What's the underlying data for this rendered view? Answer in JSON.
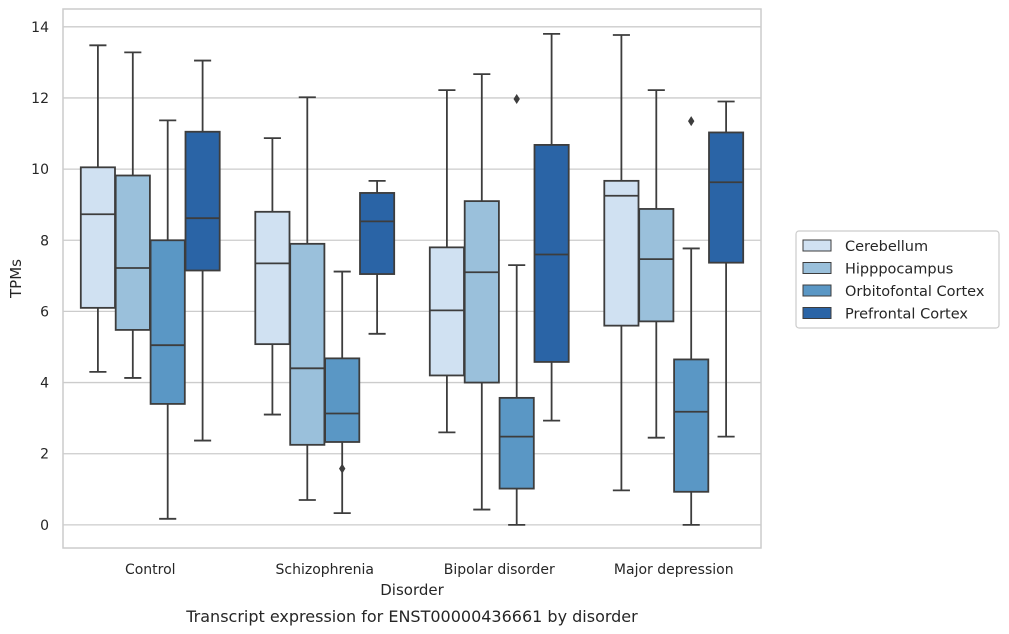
{
  "chart_data": {
    "type": "boxplot",
    "title": "",
    "caption": "Transcript expression for ENST00000436661 by disorder",
    "xlabel": "Disorder",
    "ylabel": "TPMs",
    "ylim": [
      -0.65,
      14.5
    ],
    "yticks": [
      0,
      2,
      4,
      6,
      8,
      10,
      12,
      14
    ],
    "grid": "horizontal",
    "legend_placement": "center-right outside",
    "categories": [
      "Control",
      "Schizophrenia",
      "Bipolar disorder",
      "Major depression"
    ],
    "series": [
      {
        "name": "Cerebellum",
        "color": "#d0e1f2",
        "boxes": [
          {
            "whislo": 4.3,
            "q1": 6.1,
            "med": 8.73,
            "q3": 10.05,
            "whishi": 13.48,
            "fliers": []
          },
          {
            "whislo": 3.1,
            "q1": 5.08,
            "med": 7.35,
            "q3": 8.8,
            "whishi": 10.87,
            "fliers": []
          },
          {
            "whislo": 2.6,
            "q1": 4.2,
            "med": 6.03,
            "q3": 7.8,
            "whishi": 12.22,
            "fliers": []
          },
          {
            "whislo": 0.97,
            "q1": 5.6,
            "med": 9.25,
            "q3": 9.67,
            "whishi": 13.77,
            "fliers": []
          }
        ]
      },
      {
        "name": "Hipppocampus",
        "color": "#9ac0db",
        "boxes": [
          {
            "whislo": 4.13,
            "q1": 5.48,
            "med": 7.22,
            "q3": 9.82,
            "whishi": 13.28,
            "fliers": []
          },
          {
            "whislo": 0.7,
            "q1": 2.25,
            "med": 4.4,
            "q3": 7.9,
            "whishi": 12.02,
            "fliers": []
          },
          {
            "whislo": 0.43,
            "q1": 4.0,
            "med": 7.1,
            "q3": 9.1,
            "whishi": 12.67,
            "fliers": []
          },
          {
            "whislo": 2.45,
            "q1": 5.72,
            "med": 7.47,
            "q3": 8.88,
            "whishi": 12.22,
            "fliers": []
          }
        ]
      },
      {
        "name": "Orbitofontal Cortex",
        "color": "#5a97c5",
        "boxes": [
          {
            "whislo": 0.17,
            "q1": 3.4,
            "med": 5.05,
            "q3": 8.0,
            "whishi": 11.37,
            "fliers": []
          },
          {
            "whislo": 0.33,
            "q1": 2.33,
            "med": 3.13,
            "q3": 4.68,
            "whishi": 7.12,
            "fliers": [
              1.58
            ]
          },
          {
            "whislo": 0.0,
            "q1": 1.02,
            "med": 2.48,
            "q3": 3.57,
            "whishi": 7.3,
            "fliers": [
              11.97
            ]
          },
          {
            "whislo": 0.0,
            "q1": 0.93,
            "med": 3.18,
            "q3": 4.65,
            "whishi": 7.77,
            "fliers": [
              11.35
            ]
          }
        ]
      },
      {
        "name": "Prefrontal Cortex",
        "color": "#2a64a6",
        "boxes": [
          {
            "whislo": 2.37,
            "q1": 7.15,
            "med": 8.62,
            "q3": 11.05,
            "whishi": 13.05,
            "fliers": []
          },
          {
            "whislo": 5.37,
            "q1": 7.05,
            "med": 8.53,
            "q3": 9.33,
            "whishi": 9.67,
            "fliers": []
          },
          {
            "whislo": 2.93,
            "q1": 4.58,
            "med": 7.6,
            "q3": 10.68,
            "whishi": 13.8,
            "fliers": []
          },
          {
            "whislo": 2.48,
            "q1": 7.37,
            "med": 9.63,
            "q3": 11.03,
            "whishi": 11.9,
            "fliers": []
          }
        ]
      }
    ]
  }
}
